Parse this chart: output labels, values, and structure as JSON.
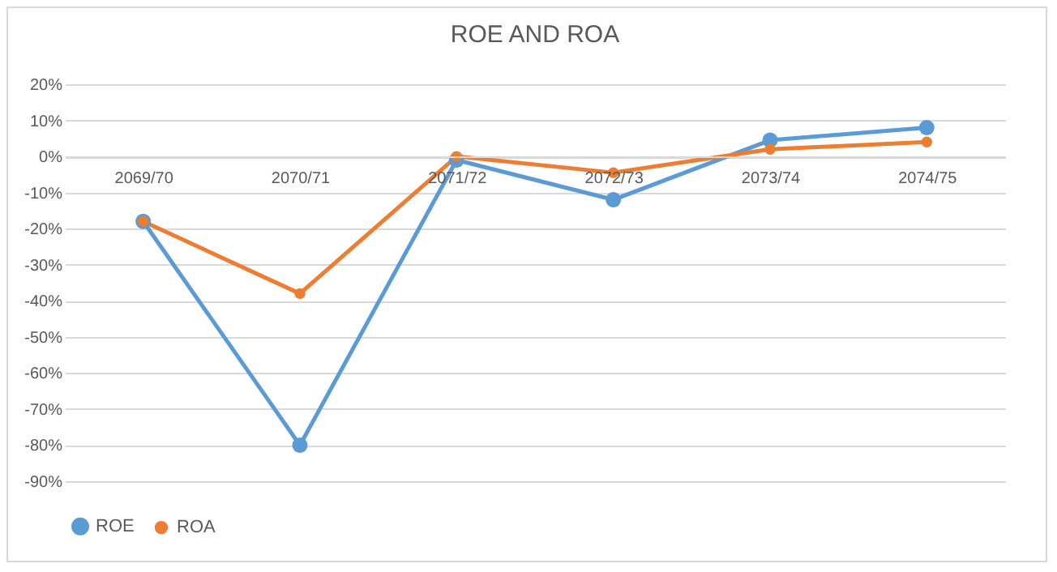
{
  "chart_data": {
    "type": "line",
    "title": "ROE AND ROA",
    "categories": [
      "2069/70",
      "2070/71",
      "2071/72",
      "2072/73",
      "2073/74",
      "2074/75"
    ],
    "series": [
      {
        "name": "ROE",
        "color": "#5b9bd5",
        "values": [
          -18,
          -80,
          -1,
          -12,
          4.5,
          8
        ]
      },
      {
        "name": "ROA",
        "color": "#ed7d31",
        "values": [
          -18,
          -38,
          0,
          -4.5,
          2,
          4
        ]
      }
    ],
    "ylim": [
      -90,
      20
    ],
    "yticks": [
      {
        "value": -90,
        "label": "-90%"
      },
      {
        "value": -80,
        "label": "-80%"
      },
      {
        "value": -70,
        "label": "-70%"
      },
      {
        "value": -60,
        "label": "-60%"
      },
      {
        "value": -50,
        "label": "-50%"
      },
      {
        "value": -40,
        "label": "-40%"
      },
      {
        "value": -30,
        "label": "-30%"
      },
      {
        "value": -20,
        "label": "-20%"
      },
      {
        "value": -10,
        "label": "-10%"
      },
      {
        "value": 0,
        "label": "0%"
      },
      {
        "value": 10,
        "label": "10%"
      },
      {
        "value": 20,
        "label": "20%"
      }
    ],
    "grid": "y",
    "legend": "bottom",
    "marker": "circle",
    "line_style": "solid"
  }
}
